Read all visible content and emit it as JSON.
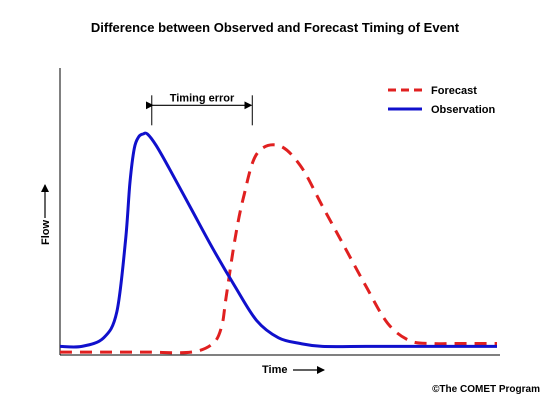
{
  "chart_data": {
    "type": "line",
    "title": "Difference between Observed and Forecast Timing of Event",
    "xlabel": "Time",
    "ylabel": "Flow",
    "x_ticks": false,
    "y_ticks": false,
    "grid": false,
    "legend_position": "top-right",
    "xlim": [
      0,
      100
    ],
    "ylim": [
      0,
      100
    ],
    "series": [
      {
        "name": "Forecast",
        "style": "dashed",
        "color": "#e02020",
        "x": [
          0,
          10,
          20,
          30,
          35,
          37,
          38,
          40,
          42,
          45,
          50,
          55,
          60,
          65,
          70,
          75,
          80,
          85,
          90,
          95,
          100
        ],
        "y": [
          1,
          1,
          1,
          1,
          4,
          10,
          20,
          40,
          55,
          70,
          73,
          66,
          52,
          38,
          24,
          11,
          5,
          4,
          4,
          4,
          4
        ]
      },
      {
        "name": "Observation",
        "style": "solid",
        "color": "#1010cc",
        "x": [
          0,
          5,
          10,
          13,
          15,
          16,
          17,
          18,
          19,
          20,
          22,
          25,
          30,
          35,
          40,
          45,
          50,
          55,
          60,
          70,
          80,
          90,
          100
        ],
        "y": [
          3,
          3,
          6,
          15,
          40,
          60,
          72,
          76,
          77,
          77,
          73,
          65,
          51,
          37,
          24,
          12,
          6,
          4,
          3,
          3,
          3,
          3,
          3
        ]
      }
    ],
    "annotations": [
      {
        "text": "Timing error",
        "type": "double-arrow",
        "x_start": 21,
        "x_end": 44,
        "y": 87
      }
    ],
    "credit": "©The COMET Program"
  }
}
